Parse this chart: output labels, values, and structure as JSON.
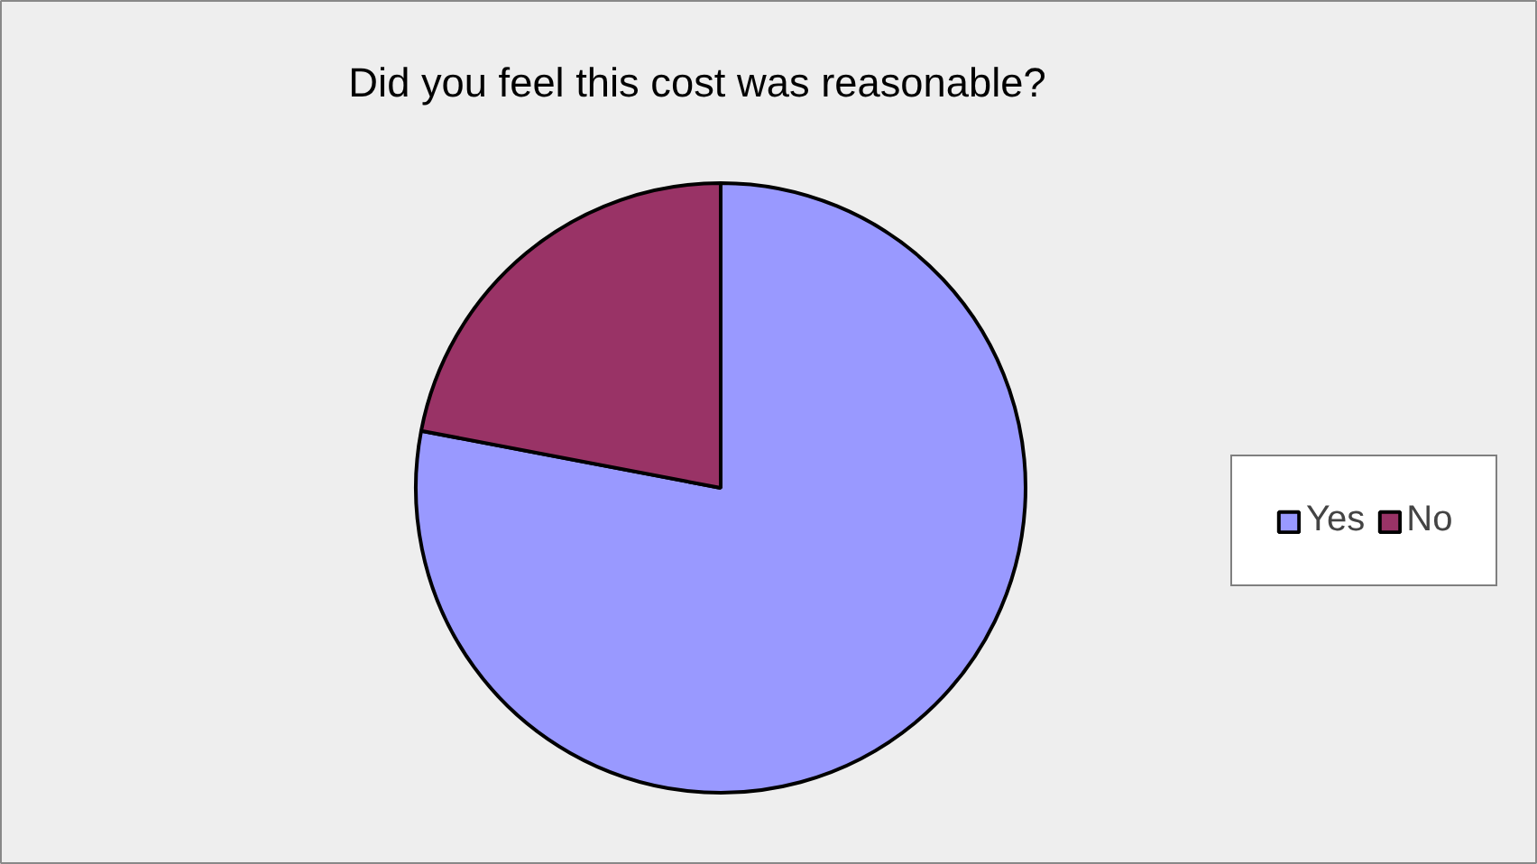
{
  "chart_data": {
    "type": "pie",
    "title": "Did you feel this cost was reasonable?",
    "categories": [
      "Yes",
      "No"
    ],
    "values": [
      78,
      22
    ],
    "colors": [
      "#9999ff",
      "#993366"
    ],
    "legend": "right"
  }
}
